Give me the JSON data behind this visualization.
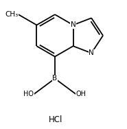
{
  "background_color": "#ffffff",
  "line_color": "#000000",
  "line_width": 1.3,
  "font_size": 7.5,
  "fig_width": 1.85,
  "fig_height": 1.88,
  "label_N_bridge": "N",
  "label_N_im": "N",
  "label_B": "B",
  "label_HO1": "HO",
  "label_HO2": "OH",
  "label_Me": "CH₃",
  "label_HCl": "HCl"
}
